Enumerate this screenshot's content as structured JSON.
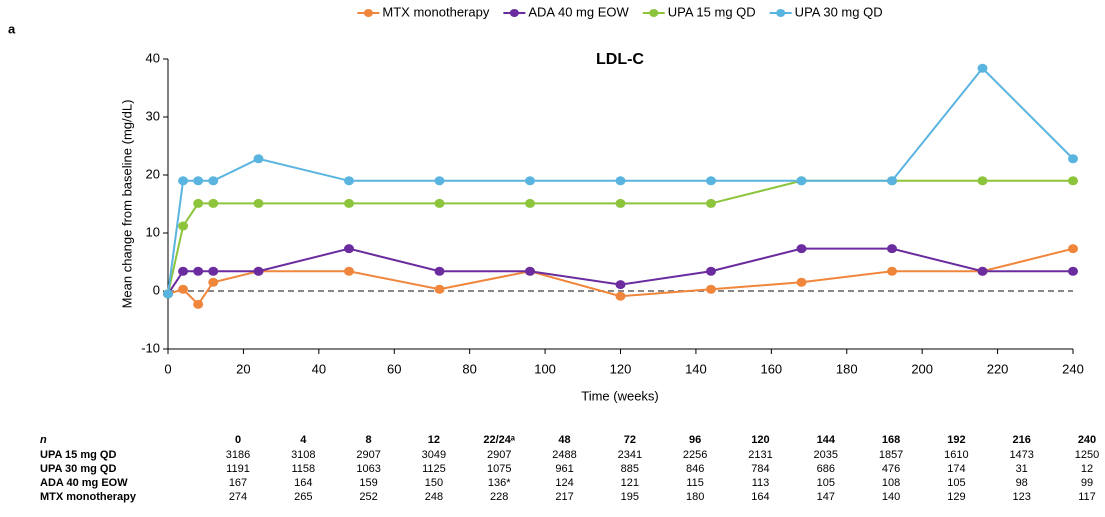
{
  "chart_data": {
    "type": "line",
    "panel_label": "a",
    "title": "LDL-C",
    "x_label": "Time (weeks)",
    "y_label": "Mean change from baseline (mg/dL)",
    "x": [
      0,
      4,
      8,
      12,
      24,
      48,
      72,
      96,
      120,
      144,
      168,
      192,
      216,
      240
    ],
    "series": [
      {
        "name": "MTX monotherapy",
        "color": "#f0863c",
        "values": [
          -0.5,
          0.3,
          -2.3,
          1.5,
          3.4,
          3.4,
          0.3,
          3.4,
          -0.9,
          0.3,
          1.5,
          3.4,
          3.4,
          7.3
        ]
      },
      {
        "name": "ADA 40 mg EOW",
        "color": "#6a2c9e",
        "values": [
          -0.5,
          3.4,
          3.4,
          3.4,
          3.4,
          7.3,
          3.4,
          3.4,
          1.1,
          3.4,
          7.3,
          7.3,
          3.4,
          3.4
        ]
      },
      {
        "name": "UPA 15 mg QD",
        "color": "#8cc43c",
        "values": [
          -0.5,
          11.2,
          15.1,
          15.1,
          15.1,
          15.1,
          15.1,
          15.1,
          15.1,
          15.1,
          19,
          19,
          19,
          19
        ]
      },
      {
        "name": "UPA 30 mg QD",
        "color": "#5ab4e0",
        "values": [
          -0.5,
          19,
          19,
          19,
          22.8,
          19,
          19,
          19,
          19,
          19,
          19,
          19,
          38.4,
          22.8
        ]
      }
    ],
    "xlim": [
      0,
      240
    ],
    "xticks": [
      0,
      20,
      40,
      60,
      80,
      100,
      120,
      140,
      160,
      180,
      200,
      220,
      240
    ],
    "ylim": [
      -10,
      40
    ],
    "yticks": [
      -10,
      0,
      10,
      20,
      30,
      40
    ],
    "legend": "top",
    "zero_line": true
  },
  "table": {
    "header_label": "n",
    "columns": [
      "0",
      "4",
      "8",
      "12",
      "22/24ᵃ",
      "48",
      "72",
      "96",
      "120",
      "144",
      "168",
      "192",
      "216",
      "240"
    ],
    "rows": [
      {
        "label": "UPA 15 mg QD",
        "cells": [
          3186,
          3108,
          2907,
          3049,
          2907,
          2488,
          2341,
          2256,
          2131,
          2035,
          1857,
          1610,
          1473,
          1250
        ]
      },
      {
        "label": "UPA 30 mg QD",
        "cells": [
          1191,
          1158,
          1063,
          1125,
          1075,
          961,
          885,
          846,
          784,
          686,
          476,
          174,
          31,
          12
        ]
      },
      {
        "label": "ADA 40 mg EOW",
        "cells": [
          167,
          164,
          159,
          150,
          "136*",
          124,
          121,
          115,
          113,
          105,
          108,
          105,
          98,
          99
        ]
      },
      {
        "label": "MTX monotherapy",
        "cells": [
          274,
          265,
          252,
          248,
          228,
          217,
          195,
          180,
          164,
          147,
          140,
          129,
          123,
          117
        ]
      }
    ]
  }
}
